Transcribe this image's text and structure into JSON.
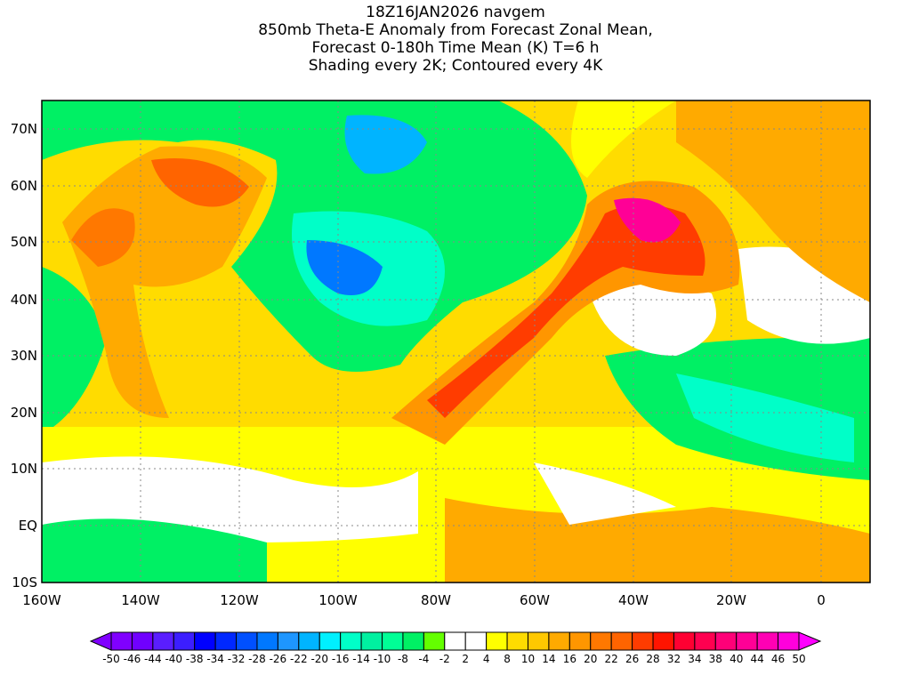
{
  "title": {
    "line1": "18Z16JAN2026 navgem",
    "line2": "850mb Theta-E Anomaly from Forecast Zonal Mean,",
    "line3": "Forecast 0-180h Time Mean (K) T=6 h",
    "line4": "Shading every 2K; Contoured every 4K"
  },
  "map": {
    "lon_labels": [
      "160W",
      "140W",
      "120W",
      "100W",
      "80W",
      "60W",
      "40W",
      "20W",
      "0"
    ],
    "lat_labels": [
      "70N",
      "60N",
      "50N",
      "40N",
      "30N",
      "20N",
      "10N",
      "EQ",
      "10S"
    ]
  },
  "colorbar": {
    "labels": [
      "-50",
      "-46",
      "-44",
      "-40",
      "-38",
      "-34",
      "-32",
      "-28",
      "-26",
      "-22",
      "-20",
      "-16",
      "-14",
      "-10",
      "-8",
      "-4",
      "-2",
      "2",
      "4",
      "8",
      "10",
      "14",
      "16",
      "20",
      "22",
      "26",
      "28",
      "32",
      "34",
      "38",
      "40",
      "44",
      "46",
      "50"
    ],
    "colors": [
      "#8000ff",
      "#7000ff",
      "#5a1eff",
      "#3c1eff",
      "#0000ff",
      "#0028ff",
      "#0050ff",
      "#0078ff",
      "#1e96ff",
      "#00b4ff",
      "#00f0ff",
      "#00ffc8",
      "#00f0a0",
      "#00ff96",
      "#00f064",
      "#64ff00",
      "#ffffff",
      "#ffffff",
      "#ffff00",
      "#ffdc00",
      "#ffc800",
      "#ffaa00",
      "#ff9600",
      "#ff7800",
      "#ff6400",
      "#ff3c00",
      "#ff1400",
      "#ff0032",
      "#ff0050",
      "#ff0078",
      "#ff0096",
      "#ff00b4",
      "#ff00dc",
      "#ff00ff"
    ]
  }
}
